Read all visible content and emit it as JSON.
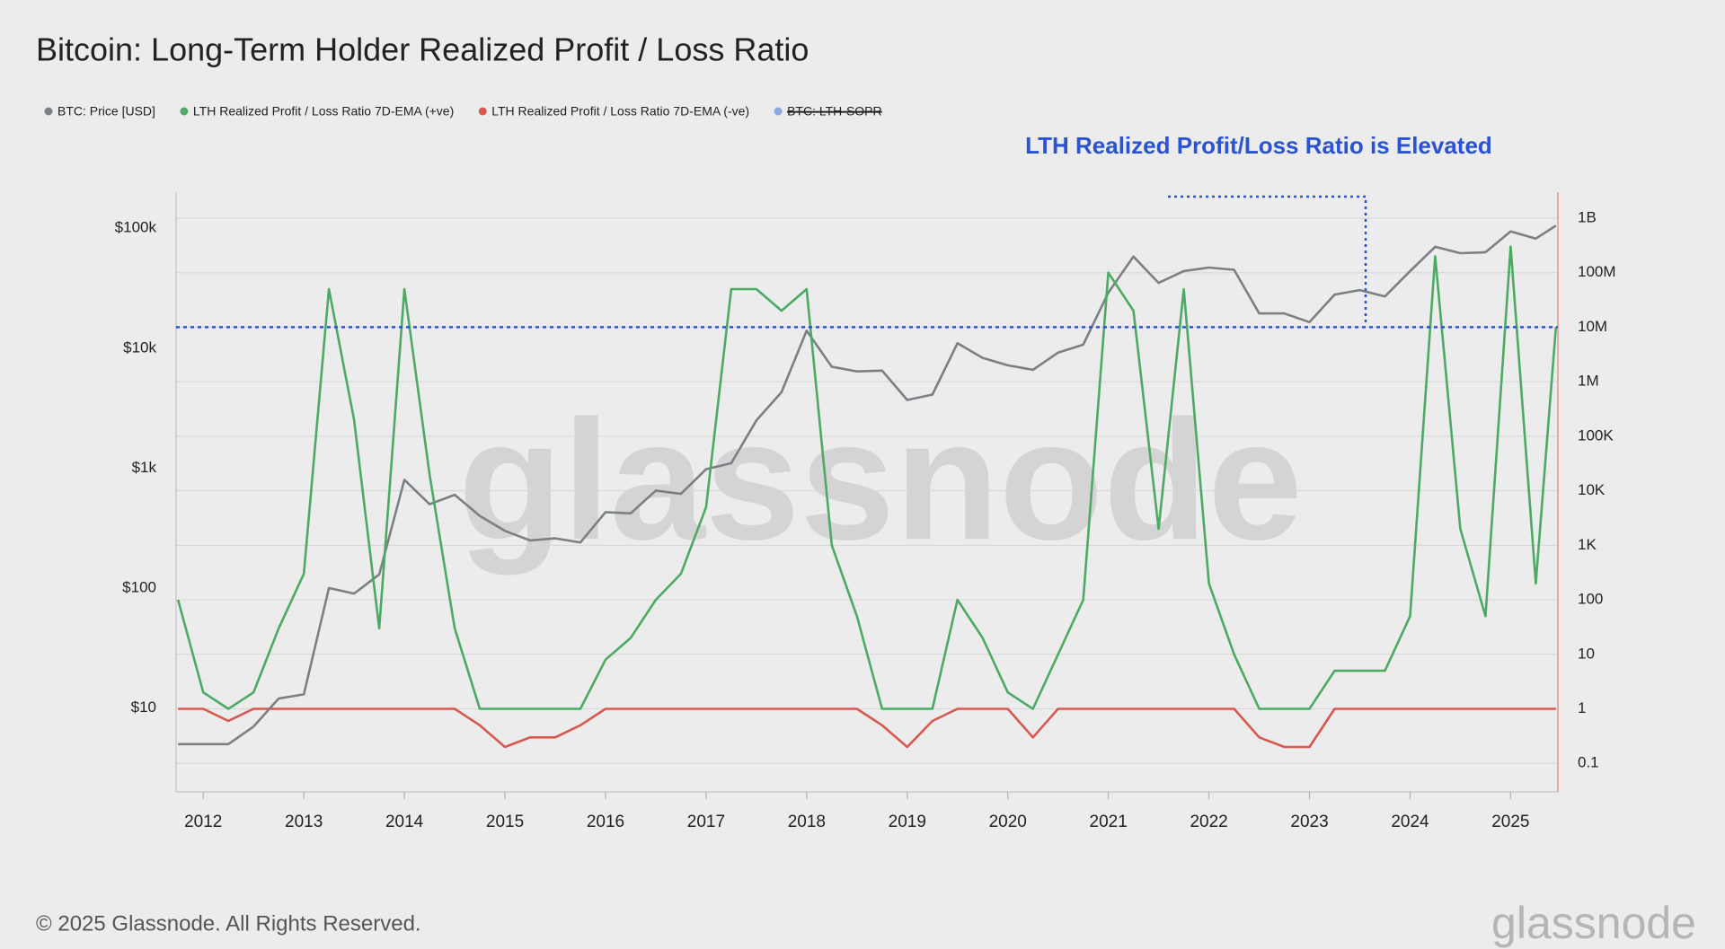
{
  "chart_data": {
    "type": "line",
    "title": "Bitcoin: Long-Term Holder Realized Profit / Loss Ratio",
    "annotation": "LTH Realized Profit/Loss Ratio is Elevated",
    "watermark": "glassnode",
    "footer": "© 2025 Glassnode. All Rights Reserved.",
    "logo": "glassnode",
    "log_scale": true,
    "x": [
      2011.75,
      2012.0,
      2012.25,
      2012.5,
      2012.75,
      2013.0,
      2013.25,
      2013.5,
      2013.75,
      2014.0,
      2014.25,
      2014.5,
      2014.75,
      2015.0,
      2015.25,
      2015.5,
      2015.75,
      2016.0,
      2016.25,
      2016.5,
      2016.75,
      2017.0,
      2017.25,
      2017.5,
      2017.75,
      2018.0,
      2018.25,
      2018.5,
      2018.75,
      2019.0,
      2019.25,
      2019.5,
      2019.75,
      2020.0,
      2020.25,
      2020.5,
      2020.75,
      2021.0,
      2021.25,
      2021.5,
      2021.75,
      2022.0,
      2022.25,
      2022.5,
      2022.75,
      2023.0,
      2023.25,
      2023.5,
      2023.75,
      2024.0,
      2024.25,
      2024.5,
      2024.75,
      2025.0,
      2025.25,
      2025.45
    ],
    "series": [
      {
        "name": "BTC: Price [USD]",
        "color": "#7b8085",
        "axis": "y",
        "values": [
          5,
          5,
          5,
          7,
          12,
          13,
          100,
          90,
          130,
          800,
          500,
          600,
          400,
          300,
          250,
          260,
          240,
          430,
          420,
          650,
          610,
          980,
          1100,
          2500,
          4300,
          14000,
          7000,
          6400,
          6500,
          3700,
          4100,
          11000,
          8300,
          7200,
          6600,
          9200,
          10700,
          29000,
          58000,
          35000,
          44000,
          47000,
          45000,
          19500,
          19500,
          16500,
          28000,
          30500,
          27000,
          44000,
          70000,
          62000,
          63000,
          94000,
          82000,
          105000
        ]
      },
      {
        "name": "LTH Realized Profit / Loss Ratio 7D-EMA (+ve)",
        "color": "#4caa64",
        "axis": "y2",
        "values": [
          100,
          2,
          1,
          2,
          30,
          300,
          50000000,
          200000,
          30,
          50000000,
          20000,
          30,
          1,
          1,
          1,
          1,
          1,
          8,
          20,
          100,
          300,
          5000,
          50000000,
          50000000,
          20000000,
          50000000,
          1000,
          50,
          1,
          1,
          1,
          100,
          20,
          2,
          1,
          10,
          100,
          100000000,
          20000000,
          2000,
          50000000,
          200,
          10,
          1,
          1,
          1,
          5,
          5,
          5,
          50,
          200000000,
          2000,
          50,
          300000000,
          200,
          10000000
        ]
      },
      {
        "name": "LTH Realized Profit / Loss Ratio 7D-EMA (-ve)",
        "color": "#d9574e",
        "axis": "y2",
        "values": [
          1,
          1,
          0.6,
          1,
          1,
          1,
          1,
          1,
          1,
          1,
          1,
          1,
          0.5,
          0.2,
          0.3,
          0.3,
          0.5,
          1,
          1,
          1,
          1,
          1,
          1,
          1,
          1,
          1,
          1,
          1,
          0.5,
          0.2,
          0.6,
          1,
          1,
          1,
          0.3,
          1,
          1,
          1,
          1,
          1,
          1,
          1,
          1,
          0.3,
          0.2,
          0.2,
          1,
          1,
          1,
          1,
          1,
          1,
          1,
          1,
          1,
          1
        ]
      },
      {
        "name": "BTC: LTH-SOPR",
        "color": "#8fa6e0",
        "hidden": true
      }
    ],
    "reference_line": {
      "value": 10000000,
      "axis": "y2",
      "color": "#2a52d6"
    },
    "xlim": [
      2011.73,
      2025.47
    ],
    "xticks": [
      2012,
      2013,
      2014,
      2015,
      2016,
      2017,
      2018,
      2019,
      2020,
      2021,
      2022,
      2023,
      2024,
      2025
    ],
    "ylim": [
      2,
      200000
    ],
    "yticks": [
      {
        "value": 10,
        "label": "$10"
      },
      {
        "value": 100,
        "label": "$100"
      },
      {
        "value": 1000,
        "label": "$1k"
      },
      {
        "value": 10000,
        "label": "$10k"
      },
      {
        "value": 100000,
        "label": "$100k"
      }
    ],
    "y2lim": [
      0.03,
      3000000000
    ],
    "y2ticks": [
      0.1,
      1,
      10,
      100,
      {
        "value": 1000,
        "label": "1K"
      },
      {
        "value": 10000,
        "label": "10K"
      },
      {
        "value": 100000,
        "label": "100K"
      },
      {
        "value": 1000000,
        "label": "1M"
      },
      {
        "value": 10000000,
        "label": "10M"
      },
      {
        "value": 100000000,
        "label": "100M"
      },
      {
        "value": 1000000000,
        "label": "1B"
      }
    ],
    "grid": true
  }
}
